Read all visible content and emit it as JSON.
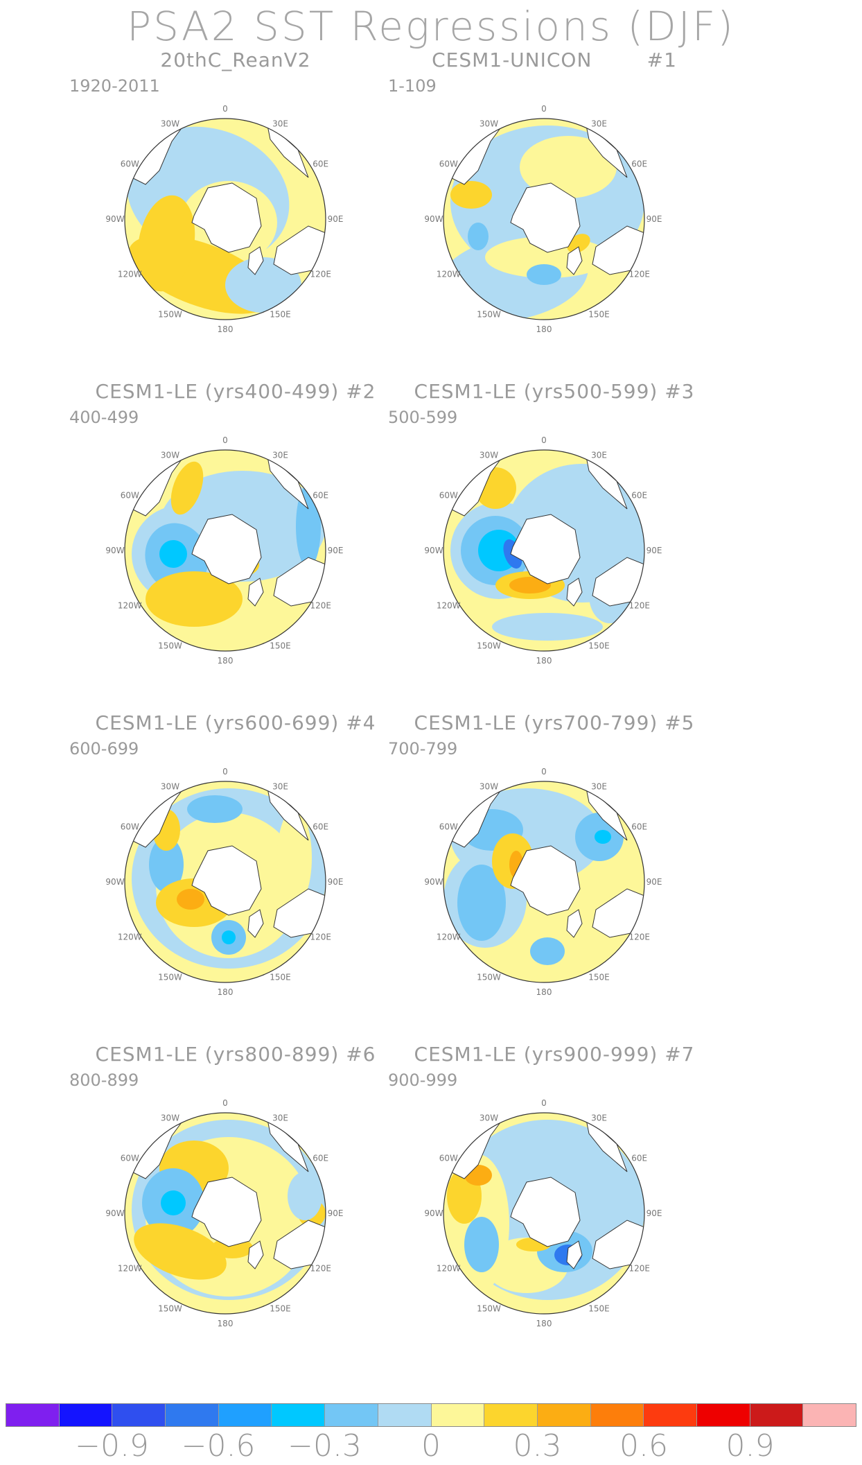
{
  "title": "PSA2 SST Regressions (DJF)",
  "lon_labels": [
    "0",
    "30E",
    "60E",
    "90E",
    "120E",
    "150E",
    "180",
    "150W",
    "120W",
    "90W",
    "60W",
    "30W"
  ],
  "panels": [
    {
      "title": "20thC_ReanV2",
      "years": "1920-2011"
    },
    {
      "title": "CESM1-UNICON        #1",
      "years": "1-109"
    },
    {
      "title": "CESM1-LE (yrs400-499) #2",
      "years": "400-499"
    },
    {
      "title": "CESM1-LE (yrs500-599) #3",
      "years": "500-599"
    },
    {
      "title": "CESM1-LE (yrs600-699) #4",
      "years": "600-699"
    },
    {
      "title": "CESM1-LE (yrs700-799) #5",
      "years": "700-799"
    },
    {
      "title": "CESM1-LE (yrs800-899) #6",
      "years": "800-899"
    },
    {
      "title": "CESM1-LE (yrs900-999) #7",
      "years": "900-999"
    }
  ],
  "colorbar": {
    "colors": [
      "#7f1fef",
      "#1414ff",
      "#2f4fef",
      "#2f79ef",
      "#1fa0ff",
      "#00c8ff",
      "#73c6f5",
      "#b0dbf3",
      "#fdf799",
      "#fcd52d",
      "#fcad13",
      "#fd7e0b",
      "#fd3b0f",
      "#ee0000",
      "#cc1a1a",
      "#fbb4b4"
    ],
    "labels": [
      "−0.9",
      "−0.6",
      "−0.3",
      "0",
      "0.3",
      "0.6",
      "0.9"
    ]
  }
}
